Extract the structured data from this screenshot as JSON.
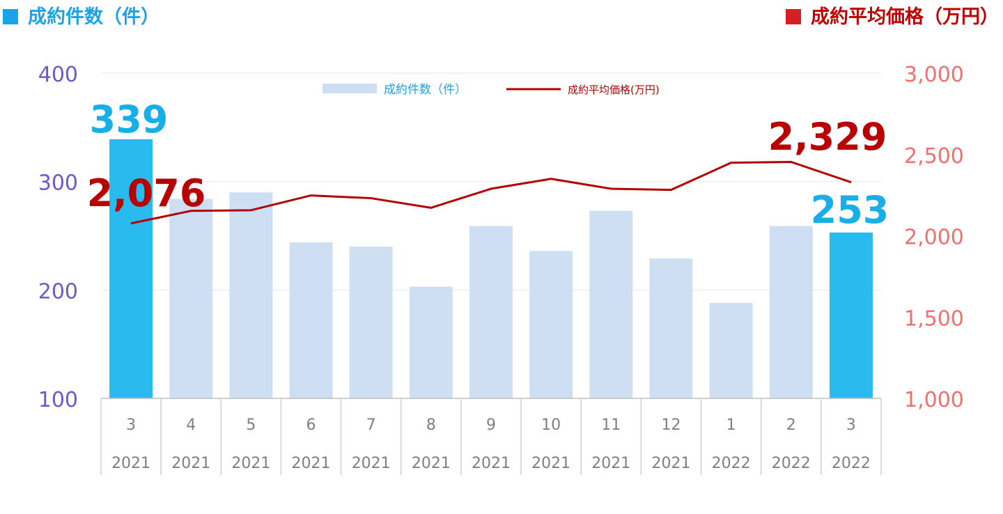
{
  "header": {
    "left_title": "成約件数（件）",
    "right_title": "成約平均価格（万円）"
  },
  "colors": {
    "bar_highlight": "#29baf0",
    "bar_default": "#cfdff3",
    "line": "#b20000",
    "left_axis_text": "#6a5acd",
    "right_axis_text": "#f07070",
    "count_label": "#18aee8",
    "price_label": "#b80000"
  },
  "chart_data": {
    "type": "bar+line",
    "categories": [
      {
        "month": "3",
        "year": "2021"
      },
      {
        "month": "4",
        "year": "2021"
      },
      {
        "month": "5",
        "year": "2021"
      },
      {
        "month": "6",
        "year": "2021"
      },
      {
        "month": "7",
        "year": "2021"
      },
      {
        "month": "8",
        "year": "2021"
      },
      {
        "month": "9",
        "year": "2021"
      },
      {
        "month": "10",
        "year": "2021"
      },
      {
        "month": "11",
        "year": "2021"
      },
      {
        "month": "12",
        "year": "2021"
      },
      {
        "month": "1",
        "year": "2022"
      },
      {
        "month": "2",
        "year": "2022"
      },
      {
        "month": "3",
        "year": "2022"
      }
    ],
    "series": [
      {
        "name": "成約件数（件）",
        "type": "bar",
        "axis": "left",
        "values": [
          339,
          284,
          290,
          244,
          240,
          203,
          259,
          236,
          273,
          229,
          188,
          259,
          253
        ],
        "highlight": [
          0,
          12
        ]
      },
      {
        "name": "成約平均価格(万円)",
        "type": "line",
        "axis": "right",
        "values": [
          2076,
          2153,
          2157,
          2248,
          2231,
          2172,
          2289,
          2350,
          2289,
          2282,
          2449,
          2454,
          2329
        ]
      }
    ],
    "left_axis": {
      "min": 100,
      "max": 400,
      "ticks": [
        "100",
        "200",
        "300",
        "400"
      ]
    },
    "right_axis": {
      "min": 1000,
      "max": 3000,
      "ticks": [
        "1,000",
        "1,500",
        "2,000",
        "2,500",
        "3,000"
      ]
    },
    "annotations": {
      "count_first": "339",
      "count_last": "253",
      "price_first": "2,076",
      "price_last": "2,329"
    },
    "grid": true,
    "legend": "top-center"
  }
}
